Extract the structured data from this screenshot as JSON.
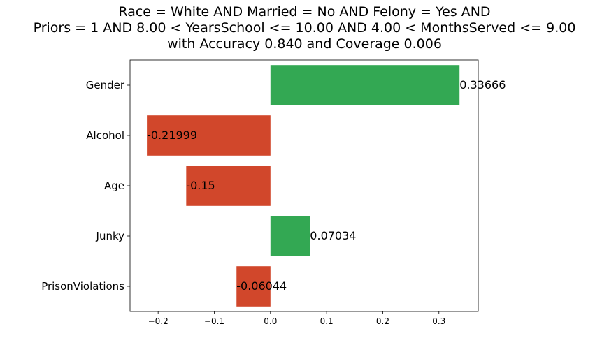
{
  "chart_data": {
    "type": "bar",
    "orientation": "horizontal",
    "title_lines": [
      "Race = White AND Married = No AND Felony = Yes AND",
      "Priors = 1 AND 8.00 < YearsSchool <= 10.00 AND 4.00 < MonthsServed <= 9.00",
      "with Accuracy 0.840 and Coverage 0.006"
    ],
    "categories": [
      "Gender",
      "Alcohol",
      "Age",
      "Junky",
      "PrisonViolations"
    ],
    "values": [
      0.33666,
      -0.21999,
      -0.15,
      0.07034,
      -0.06044
    ],
    "value_labels": [
      "0.33666",
      "-0.21999",
      "-0.15",
      "0.07034",
      "-0.06044"
    ],
    "xlim": [
      -0.25,
      0.37
    ],
    "xticks": [
      -0.2,
      -0.1,
      0.0,
      0.1,
      0.2,
      0.3
    ],
    "xtick_labels": [
      "−0.2",
      "−0.1",
      "0.0",
      "0.1",
      "0.2",
      "0.3"
    ],
    "xlabel": "",
    "ylabel": "",
    "grid": false,
    "colors": {
      "positive": "#33a853",
      "negative": "#d1472b"
    }
  }
}
